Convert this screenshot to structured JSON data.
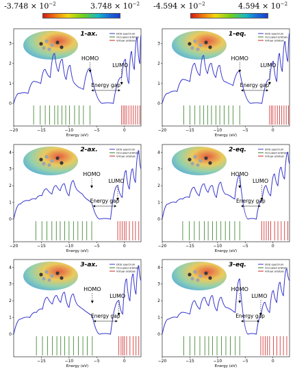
{
  "colorbar": [
    {
      "min_label": "-3.748 × 10",
      "max_label": "3.748 × 10",
      "exponent": "−2"
    },
    {
      "min_label": "-4.594 × 10",
      "max_label": "4.594 × 10",
      "exponent": "−2"
    }
  ],
  "chart_data": [
    {
      "type": "line",
      "title": "1-ax.",
      "xlabel": "Energy (eV)",
      "xlim": [
        -20,
        3
      ],
      "ylim": [
        0,
        3.6
      ],
      "x_ticks": [
        -20,
        -15,
        -10,
        -5,
        0
      ],
      "y_ticks": [
        0,
        1,
        2,
        3
      ],
      "legend": [
        "DOS spectrum",
        "Occupied orbitals",
        "Virtual orbitals"
      ],
      "annotations": {
        "homo": "HOMO",
        "lumo": "LUMO",
        "gap": "Energy gap"
      },
      "series": [
        {
          "name": "DOS spectrum",
          "x": [
            -20,
            -18.9,
            -17.4,
            -16.2,
            -15.1,
            -14.3,
            -13.4,
            -12.6,
            -11.9,
            -11.2,
            -10.5,
            -9.8,
            -9.0,
            -8.2,
            -7.4,
            -6.2,
            -4,
            -2,
            -0.5,
            0.2,
            0.8,
            1.3,
            1.8,
            2.3,
            2.8,
            3
          ],
          "y": [
            0,
            0.5,
            0.5,
            1.1,
            1.0,
            1.7,
            1.3,
            2.5,
            1.6,
            2.2,
            1.2,
            1.9,
            1.0,
            0.8,
            0.7,
            1.75,
            0,
            0,
            1.3,
            2.2,
            1.0,
            2.6,
            1.7,
            3.3,
            2.0,
            3.4
          ]
        }
      ],
      "occupied_orbitals": [
        -16.4,
        -15.2,
        -14.3,
        -13.5,
        -12.6,
        -12.0,
        -11.3,
        -10.6,
        -9.9,
        -9.0,
        -8.2,
        -7.4,
        -6.2
      ],
      "virtual_orbitals": [
        -0.5,
        -0.2,
        0.1,
        0.4,
        0.8,
        1.2,
        1.6,
        2.0,
        2.4,
        2.8
      ]
    },
    {
      "type": "line",
      "title": "1-eq.",
      "xlabel": "Energy (eV)",
      "xlim": [
        -20,
        3
      ],
      "ylim": [
        0,
        3.6
      ],
      "x_ticks": [
        -20,
        -15,
        -10,
        -5,
        0
      ],
      "y_ticks": [
        0,
        1,
        2,
        3
      ],
      "legend": [
        "DOS spectrum",
        "Occupied orbitals",
        "Virtual orbitals"
      ],
      "annotations": {
        "homo": "HOMO",
        "lumo": "LUMO",
        "gap": "Energy gap"
      },
      "series": [
        {
          "name": "DOS spectrum",
          "x": [
            -20,
            -18.9,
            -17.3,
            -16.1,
            -15.0,
            -14.1,
            -13.2,
            -12.5,
            -11.8,
            -11.1,
            -10.3,
            -9.6,
            -8.8,
            -8.0,
            -7.2,
            -6.0,
            -4,
            -2,
            -0.6,
            0.1,
            0.7,
            1.2,
            1.7,
            2.2,
            2.7,
            3
          ],
          "y": [
            0,
            0.5,
            0.6,
            1.2,
            1.1,
            2.0,
            1.4,
            2.4,
            1.5,
            2.0,
            1.3,
            1.9,
            1.1,
            1.0,
            0.9,
            1.6,
            0,
            0,
            1.2,
            2.1,
            1.1,
            2.5,
            1.6,
            3.1,
            2.1,
            3.5
          ]
        }
      ],
      "occupied_orbitals": [
        -16.1,
        -15.0,
        -14.1,
        -13.2,
        -12.5,
        -11.8,
        -11.1,
        -10.3,
        -9.6,
        -8.8,
        -8.0,
        -7.2,
        -6.0
      ],
      "virtual_orbitals": [
        -0.6,
        -0.3,
        0.0,
        0.4,
        0.8,
        1.2,
        1.6,
        2.0,
        2.4,
        2.8
      ]
    },
    {
      "type": "line",
      "title": "2-ax.",
      "xlabel": "Energy (eV)",
      "xlim": [
        -20,
        3
      ],
      "ylim": [
        0,
        4.3
      ],
      "x_ticks": [
        -20,
        -15,
        -10,
        -5,
        0
      ],
      "y_ticks": [
        0,
        1,
        2,
        3,
        4
      ],
      "legend": [
        "DOS spectrum",
        "Occupied orbitals",
        "Virtual orbitals"
      ],
      "annotations": {
        "homo": "HOMO",
        "lumo": "LUMO",
        "gap": "Energy gap"
      },
      "series": [
        {
          "name": "DOS spectrum",
          "x": [
            -20,
            -18.8,
            -17.2,
            -16.0,
            -14.9,
            -14.0,
            -13.1,
            -12.3,
            -11.6,
            -10.8,
            -10.0,
            -9.2,
            -8.4,
            -7.6,
            -6.8,
            -5.9,
            -4.5,
            -2.5,
            -1.2,
            -0.4,
            0.3,
            0.9,
            1.5,
            2.0,
            2.6,
            3
          ],
          "y": [
            0,
            0.9,
            1.1,
            1.2,
            1.4,
            1.8,
            1.5,
            2.0,
            1.7,
            2.1,
            1.4,
            2.3,
            1.7,
            1.5,
            1.2,
            1.0,
            0,
            0,
            2.0,
            1.3,
            2.9,
            1.8,
            3.0,
            2.2,
            4.1,
            3.0
          ]
        }
      ],
      "occupied_orbitals": [
        -16.0,
        -14.9,
        -14.0,
        -13.1,
        -12.3,
        -11.6,
        -10.8,
        -10.0,
        -9.2,
        -8.4,
        -7.6,
        -6.8,
        -5.9
      ],
      "virtual_orbitals": [
        -1.2,
        -0.8,
        -0.4,
        0.0,
        0.3,
        0.9,
        1.5,
        2.0,
        2.6
      ]
    },
    {
      "type": "line",
      "title": "2-eq.",
      "xlabel": "Energy (eV)",
      "xlim": [
        -20,
        3
      ],
      "ylim": [
        0,
        4.3
      ],
      "x_ticks": [
        -20,
        -15,
        -10,
        -5,
        0
      ],
      "y_ticks": [
        0,
        1,
        2,
        3,
        4
      ],
      "legend": [
        "DOS spectrum",
        "Occupied orbitals",
        "Virtual orbitals"
      ],
      "annotations": {
        "homo": "HOMO",
        "lumo": "LUMO",
        "gap": "Energy gap"
      },
      "series": [
        {
          "name": "DOS spectrum",
          "x": [
            -20,
            -18.9,
            -17.5,
            -16.3,
            -15.1,
            -14.2,
            -13.3,
            -12.4,
            -11.7,
            -10.9,
            -10.2,
            -9.4,
            -8.6,
            -7.8,
            -6.9,
            -6.0,
            -4.5,
            -3,
            -2.0,
            -1.2,
            -0.4,
            0.3,
            0.9,
            1.5,
            2.1,
            2.7,
            3
          ],
          "y": [
            0,
            0.9,
            1.0,
            1.2,
            1.3,
            1.9,
            1.4,
            2.1,
            1.6,
            2.0,
            1.3,
            2.2,
            1.5,
            1.4,
            1.2,
            2.6,
            0,
            0,
            1.1,
            2.0,
            1.4,
            2.7,
            2.0,
            3.1,
            2.4,
            4.0,
            3.3
          ]
        }
      ],
      "occupied_orbitals": [
        -16.3,
        -15.1,
        -14.2,
        -13.3,
        -12.4,
        -11.7,
        -10.9,
        -10.2,
        -9.4,
        -8.6,
        -7.8,
        -6.9,
        -6.0
      ],
      "virtual_orbitals": [
        -2.0,
        -1.6,
        -1.2,
        -0.8,
        -0.4,
        0.3,
        0.9,
        1.5,
        2.1,
        2.7
      ]
    },
    {
      "type": "line",
      "title": "3-ax.",
      "xlabel": "Energy (eV)",
      "xlim": [
        -20,
        3
      ],
      "ylim": [
        0,
        4.3
      ],
      "x_ticks": [
        -15,
        -10,
        -5,
        0
      ],
      "y_ticks": [
        0,
        1,
        2,
        3,
        4
      ],
      "legend": [
        "DOS spectrum",
        "Occupied orbitals",
        "Virtual orbitals"
      ],
      "annotations": {
        "homo": "HOMO",
        "lumo": "LUMO",
        "gap": "Energy gap"
      },
      "series": [
        {
          "name": "DOS spectrum",
          "x": [
            -20,
            -18.7,
            -17.1,
            -15.9,
            -14.8,
            -13.9,
            -13.0,
            -12.2,
            -11.5,
            -10.8,
            -10.0,
            -9.2,
            -8.3,
            -7.5,
            -6.7,
            -5.8,
            -4.5,
            -2.5,
            -1.0,
            -0.3,
            0.4,
            1.0,
            1.6,
            2.1,
            2.6,
            3
          ],
          "y": [
            0,
            0.9,
            1.0,
            1.3,
            1.5,
            2.2,
            1.8,
            2.3,
            1.9,
            2.5,
            1.6,
            2.4,
            1.7,
            1.5,
            1.3,
            1.1,
            0,
            0,
            2.0,
            1.2,
            3.3,
            2.0,
            3.6,
            2.4,
            4.1,
            3.2
          ]
        }
      ],
      "occupied_orbitals": [
        -15.9,
        -14.8,
        -13.9,
        -13.0,
        -12.2,
        -11.5,
        -10.8,
        -10.0,
        -9.2,
        -8.3,
        -7.5,
        -6.7,
        -5.8
      ],
      "virtual_orbitals": [
        -1.0,
        -0.6,
        -0.3,
        0.0,
        0.4,
        1.0,
        1.6,
        2.1,
        2.6
      ]
    },
    {
      "type": "line",
      "title": "3-eq.",
      "xlabel": "Energy (eV)",
      "xlim": [
        -20,
        3
      ],
      "ylim": [
        0,
        4.3
      ],
      "x_ticks": [
        -20,
        -15,
        -10,
        -5,
        0
      ],
      "y_ticks": [
        0,
        1,
        2,
        3,
        4
      ],
      "legend": [
        "DOS spectrum",
        "Occupied orbitals",
        "Virtual orbitals"
      ],
      "annotations": {
        "homo": "HOMO",
        "lumo": "LUMO",
        "gap": "Energy gap"
      },
      "series": [
        {
          "name": "DOS spectrum",
          "x": [
            -20,
            -18.8,
            -17.3,
            -16.1,
            -15.0,
            -14.1,
            -13.2,
            -12.3,
            -11.6,
            -10.9,
            -10.1,
            -9.3,
            -8.5,
            -7.7,
            -6.8,
            -6.0,
            -4.5,
            -3,
            -2.2,
            -1.4,
            -0.6,
            0.1,
            0.7,
            1.3,
            1.9,
            2.5,
            3
          ],
          "y": [
            0,
            0.9,
            1.0,
            1.3,
            1.2,
            2.0,
            1.5,
            2.2,
            1.7,
            2.3,
            1.4,
            2.2,
            1.6,
            1.5,
            1.3,
            3.3,
            0,
            0,
            1.0,
            1.9,
            1.3,
            2.6,
            1.9,
            3.1,
            2.3,
            3.9,
            3.2
          ]
        }
      ],
      "occupied_orbitals": [
        -16.1,
        -15.0,
        -14.1,
        -13.2,
        -12.3,
        -11.6,
        -10.9,
        -10.1,
        -9.3,
        -8.5,
        -7.7,
        -6.8,
        -6.0
      ],
      "virtual_orbitals": [
        -2.2,
        -1.8,
        -1.4,
        -1.0,
        -0.6,
        0.1,
        0.7,
        1.3,
        1.9,
        2.5
      ]
    }
  ]
}
